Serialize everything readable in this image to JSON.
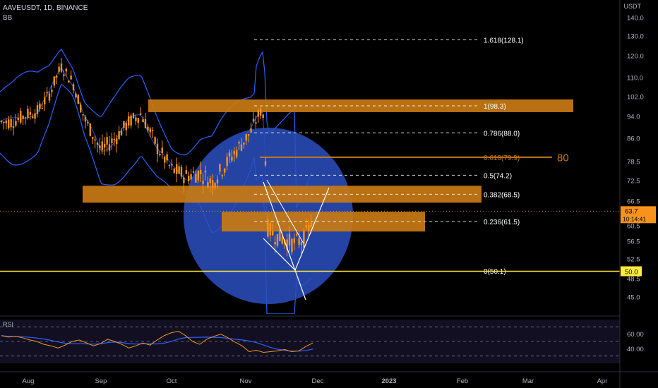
{
  "header": {
    "symbol": "AAVEUSDT, 1D, BINANCE",
    "indicator": "BB",
    "currency": "USDT",
    "rsi_label": "RSI"
  },
  "colors": {
    "background": "#000000",
    "candle": "#f7931a",
    "bands": "#2962ff",
    "circle": "#2b4fbf",
    "zone": "#c87a14",
    "fib": "#ffffff",
    "support": "#ffeb3b",
    "rsi_line": "#f7931a",
    "rsi_ma": "#2962ff",
    "price_tag": "#f7931a"
  },
  "chart_data": {
    "type": "line",
    "title": "AAVEUSDT, 1D, BINANCE",
    "ylabel": "USDT",
    "ylim": [
      41.5,
      143
    ],
    "y_ticks": [
      "140.0",
      "130.0",
      "120.0",
      "110.0",
      "102.0",
      "94.0",
      "86.0",
      "78.5",
      "72.5",
      "66.5",
      "60.5",
      "56.5",
      "52.5",
      "48.5",
      "45.0"
    ],
    "x_ticks": [
      "Aug",
      "Sep",
      "Oct",
      "Nov",
      "Dec",
      "2023",
      "Feb",
      "Mar",
      "Apr"
    ],
    "grid": false,
    "series": [
      {
        "name": "price",
        "dates": [
          "Jul 25",
          "Aug 1",
          "Aug 5",
          "Aug 10",
          "Aug 15",
          "Aug 20",
          "Aug 25",
          "Sep 1",
          "Sep 7",
          "Sep 13",
          "Sep 18",
          "Sep 25",
          "Oct 1",
          "Oct 7",
          "Oct 13",
          "Oct 18",
          "Oct 24",
          "Oct 30",
          "Nov 3",
          "Nov 6",
          "Nov 8",
          "Nov 9",
          "Nov 10",
          "Nov 13",
          "Nov 17",
          "Nov 21",
          "Nov 25",
          "Nov 29"
        ],
        "values": [
          92,
          95,
          96,
          103,
          115,
          108,
          93,
          82,
          86,
          92,
          95,
          83,
          76,
          74,
          75,
          72,
          78,
          84,
          88,
          94,
          97,
          85,
          60,
          58,
          57,
          56,
          57,
          62
        ]
      }
    ],
    "fib_levels": [
      {
        "label": "1.618(128.1)",
        "ratio": 1.618,
        "price": 128.1
      },
      {
        "label": "1(98.3)",
        "ratio": 1,
        "price": 98.3
      },
      {
        "label": "0.786(88.0)",
        "ratio": 0.786,
        "price": 88.0
      },
      {
        "label": "0.618(79.9)",
        "ratio": 0.618,
        "price": 79.9
      },
      {
        "label": "0.5(74.2)",
        "ratio": 0.5,
        "price": 74.2
      },
      {
        "label": "0.382(68.5)",
        "ratio": 0.382,
        "price": 68.5
      },
      {
        "label": "0.236(61.5)",
        "ratio": 0.236,
        "price": 61.5
      },
      {
        "label": "0(50.1)",
        "ratio": 0,
        "price": 50.1
      }
    ],
    "annotations": [
      {
        "text": "80",
        "price": 80
      }
    ],
    "support_line": {
      "price": 50.0,
      "label": "50.0"
    },
    "last_price": {
      "label": "63.7",
      "countdown": "10:14:41",
      "price": 63.7
    },
    "rsi": {
      "ticks": [
        "60.00",
        "40.00"
      ],
      "levels": [
        70,
        50,
        30
      ],
      "values": [
        58,
        56,
        57,
        55,
        52,
        50,
        46,
        44,
        41,
        45,
        50,
        52,
        48,
        44,
        47,
        53,
        50,
        46,
        41,
        44,
        48,
        45,
        52,
        58,
        62,
        64,
        58,
        50,
        46,
        53,
        57,
        60,
        55,
        49,
        44,
        36,
        38,
        35,
        36,
        37,
        39,
        36,
        37,
        43,
        48
      ]
    }
  }
}
